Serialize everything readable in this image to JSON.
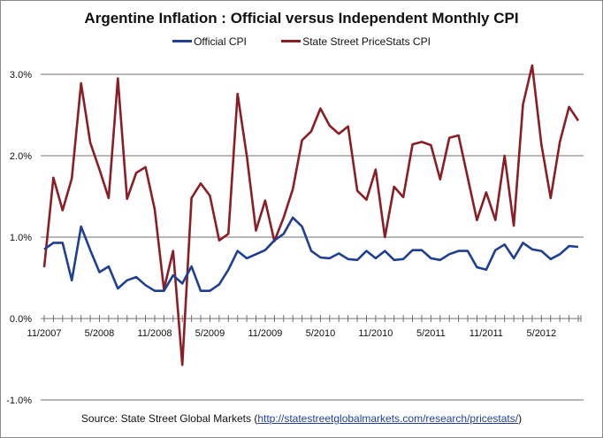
{
  "chart_data": {
    "type": "line",
    "title": "Argentine Inflation : Official versus Independent Monthly CPI",
    "xlabel": "",
    "ylabel": "",
    "ylim": [
      -1.0,
      3.0
    ],
    "y_ticks": [
      -1.0,
      0.0,
      1.0,
      2.0,
      3.0
    ],
    "y_tick_labels": [
      "-1.0%",
      "0.0%",
      "1.0%",
      "2.0%",
      "3.0%"
    ],
    "grid": true,
    "legend_position": "top-center",
    "x_start": "11/2007",
    "x_end": "9/2012",
    "x_tick_labels": [
      "11/2007",
      "5/2008",
      "11/2008",
      "5/2009",
      "11/2009",
      "5/2010",
      "11/2010",
      "5/2011",
      "11/2011",
      "5/2012"
    ],
    "x_tick_label_indices": [
      0,
      6,
      12,
      18,
      24,
      30,
      36,
      42,
      48,
      54
    ],
    "series": [
      {
        "name": "Official CPI",
        "color": "#1f3f94",
        "values": [
          0.85,
          0.93,
          0.93,
          0.47,
          1.13,
          0.84,
          0.57,
          0.64,
          0.37,
          0.47,
          0.51,
          0.41,
          0.34,
          0.34,
          0.53,
          0.43,
          0.64,
          0.34,
          0.34,
          0.42,
          0.6,
          0.83,
          0.74,
          0.79,
          0.84,
          0.96,
          1.04,
          1.24,
          1.13,
          0.83,
          0.75,
          0.74,
          0.8,
          0.73,
          0.72,
          0.83,
          0.74,
          0.83,
          0.72,
          0.73,
          0.84,
          0.84,
          0.74,
          0.72,
          0.79,
          0.83,
          0.83,
          0.63,
          0.6,
          0.84,
          0.91,
          0.74,
          0.93,
          0.85,
          0.83,
          0.73,
          0.79,
          0.89,
          0.88
        ]
      },
      {
        "name": "State Street PriceStats CPI",
        "color": "#8b1e24",
        "values": [
          0.63,
          1.73,
          1.33,
          1.72,
          2.89,
          2.16,
          1.83,
          1.48,
          2.95,
          1.47,
          1.79,
          1.86,
          1.34,
          0.36,
          0.83,
          -0.57,
          1.48,
          1.66,
          1.51,
          0.96,
          1.04,
          2.76,
          2.0,
          1.08,
          1.45,
          0.95,
          1.24,
          1.59,
          2.19,
          2.3,
          2.58,
          2.37,
          2.27,
          2.36,
          1.57,
          1.46,
          1.83,
          1.0,
          1.62,
          1.49,
          2.14,
          2.17,
          2.13,
          1.71,
          2.22,
          2.25,
          1.73,
          1.21,
          1.55,
          1.21,
          2.0,
          1.14,
          2.63,
          3.11,
          2.14,
          1.48,
          2.17,
          2.6,
          2.43
        ]
      }
    ]
  },
  "source": {
    "prefix": "Source: State Street Global Markets (",
    "link_text": "http://statestreetglobalmarkets.com/research/pricestats/",
    "suffix": ")"
  }
}
